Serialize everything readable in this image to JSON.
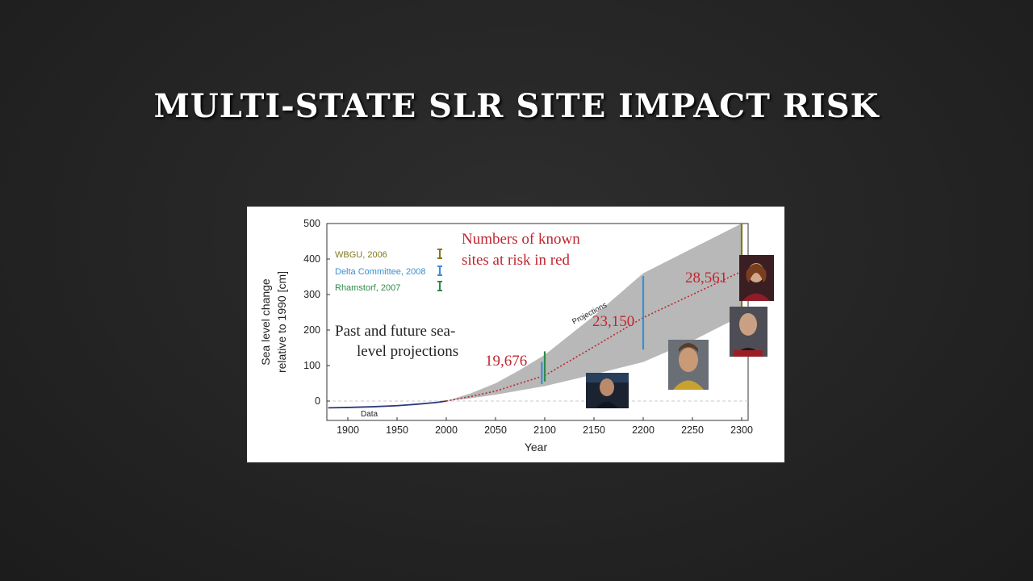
{
  "slide": {
    "title": "MULTI-STATE SLR SITE IMPACT RISK"
  },
  "colors": {
    "background": "#262626",
    "title": "#ffffff",
    "band": "#b8b8b8",
    "data_line": "#2b3a7a",
    "projection_line": "#c0262f",
    "annotation": "#c0262f",
    "wbgu": "#7f7a1e",
    "delta": "#3a8fd0",
    "rahmstorf": "#2f8a4a"
  },
  "chart_data": {
    "type": "line",
    "xlabel": "Year",
    "ylabel": "Sea level change relative to 1990 [cm]",
    "xlim": [
      1880,
      2305
    ],
    "ylim": [
      -80,
      500
    ],
    "xticks": [
      1900,
      1950,
      2000,
      2050,
      2100,
      2150,
      2200,
      2250,
      2300
    ],
    "yticks": [
      0,
      100,
      200,
      300,
      400,
      500
    ],
    "grid": false,
    "zero_line": "dashed",
    "inner_title": [
      "Past and future sea-",
      "level projections"
    ],
    "annotation_title": [
      "Numbers of known",
      "sites at risk in red"
    ],
    "series": [
      {
        "name": "Data",
        "style": "solid",
        "x": [
          1880,
          1900,
          1925,
          1950,
          1970,
          1990,
          2000
        ],
        "y": [
          -19,
          -18,
          -16,
          -13,
          -9,
          -4,
          0
        ]
      },
      {
        "name": "Projections",
        "style": "dotted",
        "x": [
          2000,
          2025,
          2050,
          2075,
          2100,
          2150,
          2200,
          2250,
          2300
        ],
        "y": [
          0,
          13,
          28,
          50,
          72,
          153,
          235,
          300,
          365
        ]
      }
    ],
    "band": {
      "x": [
        2000,
        2025,
        2050,
        2075,
        2100,
        2150,
        2200,
        2250,
        2300
      ],
      "lower": [
        0,
        8,
        18,
        30,
        42,
        75,
        110,
        170,
        240
      ],
      "upper": [
        0,
        22,
        50,
        88,
        130,
        240,
        360,
        430,
        500
      ]
    },
    "legend": [
      {
        "name": "WBGU, 2006",
        "color": "#7f7a1e"
      },
      {
        "name": "Delta Committee, 2008",
        "color": "#3a8fd0"
      },
      {
        "name": "Rhamstorf, 2007",
        "color": "#2f8a4a"
      }
    ],
    "error_bars": [
      {
        "x": 2100,
        "low": 55,
        "high": 140,
        "color": "#2f8a4a"
      },
      {
        "x": 2097,
        "low": 48,
        "high": 110,
        "color": "#3a8fd0"
      },
      {
        "x": 2200,
        "low": 145,
        "high": 352,
        "color": "#3a8fd0"
      },
      {
        "x": 2300,
        "low": 250,
        "high": 500,
        "color": "#7f7a1e"
      }
    ],
    "site_counts": [
      {
        "label": "19,676",
        "x": 2100
      },
      {
        "label": "23,150",
        "x": 2200
      },
      {
        "label": "28,561",
        "x": 2300
      }
    ],
    "band_label": "Projections",
    "data_label": "Data"
  }
}
